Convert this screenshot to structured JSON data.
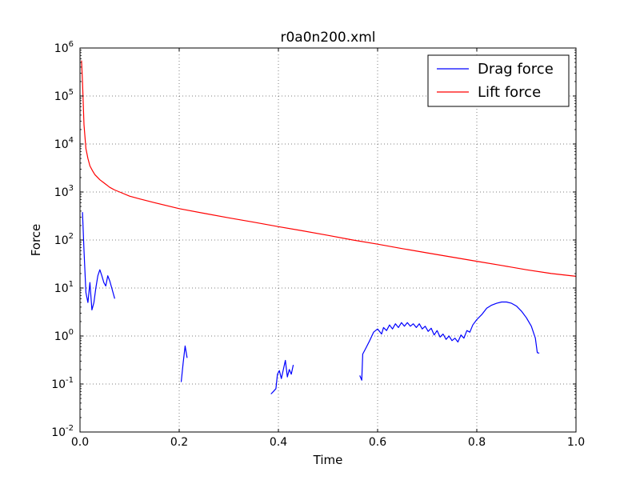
{
  "chart_data": {
    "type": "line",
    "title": "r0a0n200.xml",
    "xlabel": "Time",
    "ylabel": "Force",
    "xlim": [
      0,
      1
    ],
    "ylim": [
      0.01,
      1000000
    ],
    "yscale": "log",
    "grid": true,
    "legend_position": "top-right",
    "x_ticks": [
      "0.0",
      "0.2",
      "0.4",
      "0.6",
      "0.8",
      "1.0"
    ],
    "y_ticks": [
      {
        "base": "10",
        "exp": "-2"
      },
      {
        "base": "10",
        "exp": "-1"
      },
      {
        "base": "10",
        "exp": "0"
      },
      {
        "base": "10",
        "exp": "1"
      },
      {
        "base": "10",
        "exp": "2"
      },
      {
        "base": "10",
        "exp": "3"
      },
      {
        "base": "10",
        "exp": "4"
      },
      {
        "base": "10",
        "exp": "5"
      },
      {
        "base": "10",
        "exp": "6"
      }
    ],
    "series": [
      {
        "name": "Drag force",
        "color": "#0000ff",
        "segments": [
          [
            [
              0.005,
              380
            ],
            [
              0.008,
              60
            ],
            [
              0.012,
              8
            ],
            [
              0.016,
              5
            ],
            [
              0.02,
              13
            ],
            [
              0.024,
              3.5
            ],
            [
              0.028,
              5
            ],
            [
              0.032,
              10
            ],
            [
              0.036,
              18
            ],
            [
              0.04,
              24
            ],
            [
              0.044,
              18
            ],
            [
              0.048,
              13
            ],
            [
              0.052,
              11
            ],
            [
              0.056,
              18
            ],
            [
              0.06,
              14
            ],
            [
              0.064,
              10
            ],
            [
              0.07,
              6
            ]
          ],
          [
            [
              0.204,
              0.11
            ],
            [
              0.208,
              0.28
            ],
            [
              0.212,
              0.62
            ],
            [
              0.216,
              0.35
            ]
          ],
          [
            [
              0.385,
              0.062
            ],
            [
              0.39,
              0.07
            ],
            [
              0.395,
              0.08
            ],
            [
              0.398,
              0.16
            ],
            [
              0.402,
              0.19
            ],
            [
              0.406,
              0.13
            ],
            [
              0.41,
              0.2
            ],
            [
              0.414,
              0.31
            ],
            [
              0.418,
              0.14
            ],
            [
              0.422,
              0.2
            ],
            [
              0.426,
              0.16
            ],
            [
              0.43,
              0.25
            ]
          ],
          [
            [
              0.564,
              0.15
            ],
            [
              0.568,
              0.12
            ],
            [
              0.57,
              0.42
            ],
            [
              0.576,
              0.55
            ],
            [
              0.584,
              0.8
            ],
            [
              0.592,
              1.2
            ],
            [
              0.6,
              1.4
            ],
            [
              0.608,
              1.1
            ],
            [
              0.612,
              1.5
            ],
            [
              0.618,
              1.3
            ],
            [
              0.624,
              1.7
            ],
            [
              0.63,
              1.4
            ],
            [
              0.636,
              1.8
            ],
            [
              0.642,
              1.5
            ],
            [
              0.648,
              1.9
            ],
            [
              0.654,
              1.6
            ],
            [
              0.66,
              1.9
            ],
            [
              0.666,
              1.6
            ],
            [
              0.672,
              1.8
            ],
            [
              0.678,
              1.5
            ],
            [
              0.684,
              1.8
            ],
            [
              0.69,
              1.4
            ],
            [
              0.696,
              1.6
            ],
            [
              0.702,
              1.25
            ],
            [
              0.708,
              1.45
            ],
            [
              0.714,
              1.05
            ],
            [
              0.72,
              1.3
            ],
            [
              0.726,
              0.95
            ],
            [
              0.732,
              1.1
            ],
            [
              0.738,
              0.85
            ],
            [
              0.744,
              1.0
            ],
            [
              0.75,
              0.8
            ],
            [
              0.756,
              0.9
            ],
            [
              0.762,
              0.75
            ],
            [
              0.768,
              1.05
            ],
            [
              0.774,
              0.9
            ],
            [
              0.78,
              1.3
            ],
            [
              0.786,
              1.2
            ],
            [
              0.792,
              1.7
            ],
            [
              0.8,
              2.2
            ],
            [
              0.81,
              2.8
            ],
            [
              0.82,
              3.8
            ],
            [
              0.83,
              4.4
            ],
            [
              0.84,
              4.8
            ],
            [
              0.85,
              5.1
            ],
            [
              0.86,
              5.1
            ],
            [
              0.87,
              4.8
            ],
            [
              0.88,
              4.2
            ],
            [
              0.89,
              3.3
            ],
            [
              0.9,
              2.4
            ],
            [
              0.91,
              1.6
            ],
            [
              0.918,
              0.9
            ],
            [
              0.922,
              0.45
            ],
            [
              0.926,
              0.44
            ]
          ]
        ]
      },
      {
        "name": "Lift force",
        "color": "#ff0000",
        "segments": [
          [
            [
              0.003,
              550000
            ],
            [
              0.005,
              200000
            ],
            [
              0.008,
              25000
            ],
            [
              0.012,
              8000
            ],
            [
              0.016,
              5000
            ],
            [
              0.02,
              3500
            ],
            [
              0.025,
              2800
            ],
            [
              0.03,
              2300
            ],
            [
              0.04,
              1800
            ],
            [
              0.05,
              1500
            ],
            [
              0.06,
              1250
            ],
            [
              0.07,
              1100
            ],
            [
              0.08,
              1000
            ],
            [
              0.1,
              820
            ],
            [
              0.12,
              720
            ],
            [
              0.15,
              600
            ],
            [
              0.2,
              450
            ],
            [
              0.25,
              360
            ],
            [
              0.3,
              290
            ],
            [
              0.35,
              235
            ],
            [
              0.4,
              190
            ],
            [
              0.45,
              155
            ],
            [
              0.5,
              125
            ],
            [
              0.55,
              100
            ],
            [
              0.6,
              82
            ],
            [
              0.65,
              66
            ],
            [
              0.7,
              54
            ],
            [
              0.75,
              44
            ],
            [
              0.8,
              36
            ],
            [
              0.85,
              29.5
            ],
            [
              0.9,
              24
            ],
            [
              0.95,
              20
            ],
            [
              1.0,
              17.5
            ]
          ]
        ]
      }
    ]
  }
}
